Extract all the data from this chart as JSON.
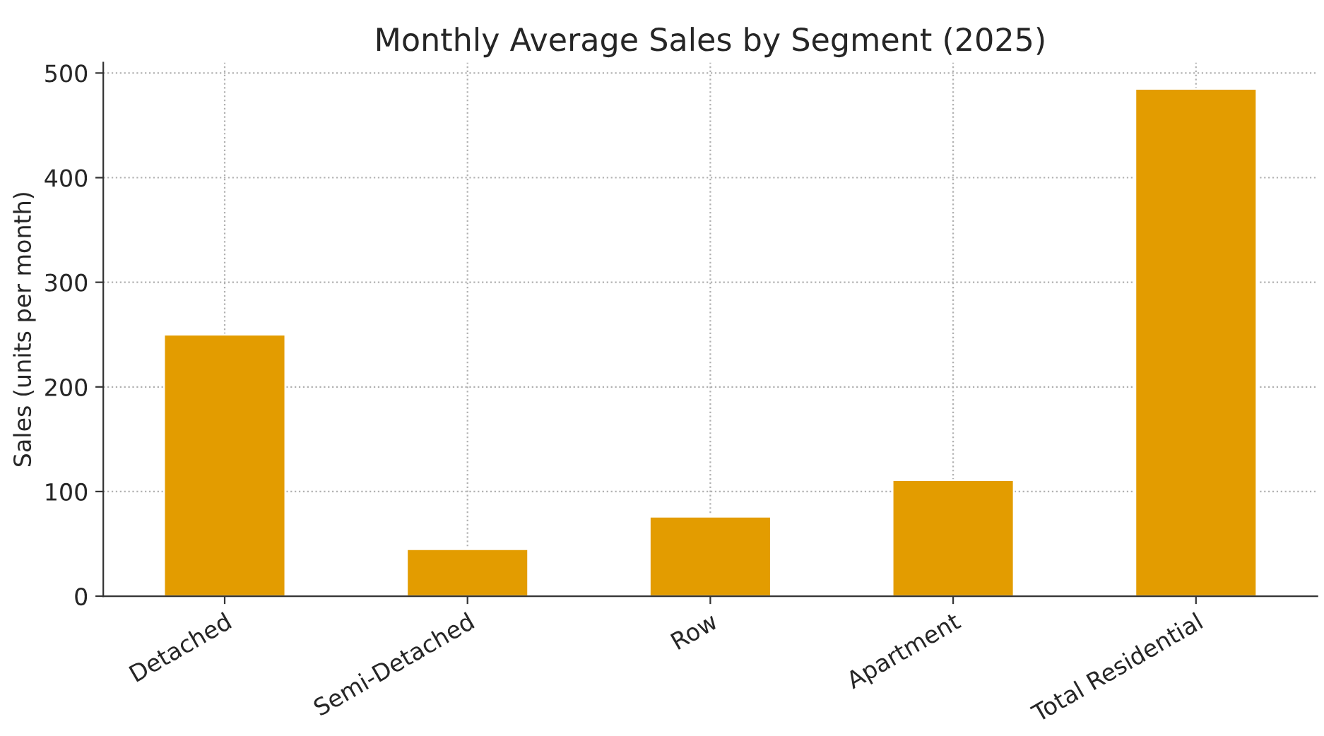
{
  "chart_data": {
    "type": "bar",
    "title": "Monthly Average Sales by Segment (2025)",
    "ylabel": "Sales (units per month)",
    "categories": [
      "Detached",
      "Semi-Detached",
      "Row",
      "Apartment",
      "Total Residential"
    ],
    "values": [
      250,
      45,
      76,
      111,
      485
    ],
    "color": "#e39c00",
    "ylim": [
      0,
      510
    ],
    "yticks": [
      0,
      100,
      200,
      300,
      400,
      500
    ],
    "grid": true
  }
}
